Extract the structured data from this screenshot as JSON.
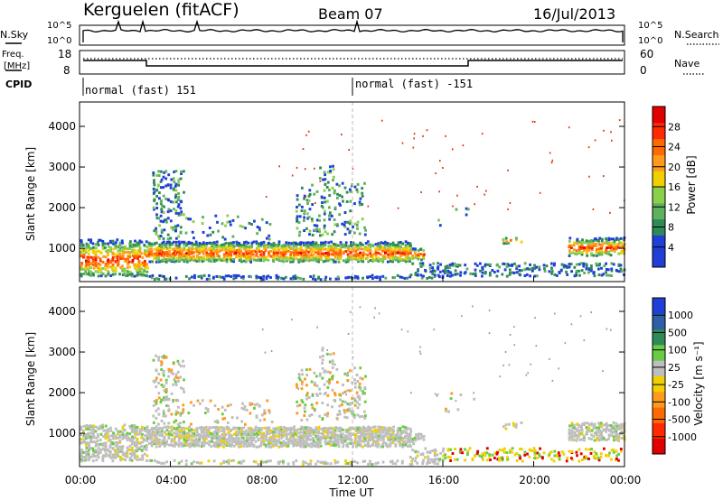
{
  "header": {
    "station": "Kerguelen (fitACF)",
    "beam": "Beam 07",
    "date": "16/Jul/2013"
  },
  "panels": {
    "nsky": {
      "label": "N.Sky",
      "left_ticks": [
        "10^5",
        "10^0"
      ]
    },
    "nsearch": {
      "label": "N.Search",
      "right_ticks": [
        "10^5",
        "10^0"
      ]
    },
    "freq": {
      "label_line1": "Freq.",
      "label_line2": "[MHz]",
      "ticks": [
        "18",
        "8"
      ]
    },
    "nave": {
      "label": "Nave",
      "ticks": [
        "60",
        "0"
      ]
    },
    "cpid": {
      "label": "CPID",
      "segments": [
        "normal (fast) 151",
        "normal (fast) -151"
      ]
    }
  },
  "colors": {
    "power": [
      "#1f3fd6",
      "#1f3fd6",
      "#2e8b57",
      "#5fb05f",
      "#8ccf4a",
      "#f0d000",
      "#ff9a1a",
      "#ff6a00",
      "#ff2a00",
      "#e00000"
    ],
    "velocity": [
      "#1f3fd6",
      "#2e5fa8",
      "#2e8b57",
      "#6acb45",
      "#bebebe",
      "#f0d000",
      "#ff9a1a",
      "#ff6a00",
      "#ff2a00",
      "#e00000"
    ],
    "power_scatter": "#e23000",
    "velocity_scatter": "#9a9a9a"
  },
  "chart_data": [
    {
      "type": "heatmap",
      "name": "power",
      "ylabel": "Slant Range [km]",
      "xlabel": "Time UT",
      "ylim": [
        180,
        4600
      ],
      "yticks": [
        1000,
        2000,
        3000,
        4000
      ],
      "xticks": [
        "00:00",
        "04:00",
        "08:00",
        "12:00",
        "16:00",
        "20:00",
        "00:00"
      ],
      "colorbar": {
        "label": "Power [dB]",
        "ticks": [
          "28",
          "24",
          "20",
          "16",
          "12",
          "8",
          "4"
        ]
      }
    },
    {
      "type": "heatmap",
      "name": "velocity",
      "ylabel": "Slant Range [km]",
      "xlabel": "Time UT",
      "ylim": [
        180,
        4600
      ],
      "yticks": [
        1000,
        2000,
        3000,
        4000
      ],
      "xticks": [
        "00:00",
        "04:00",
        "08:00",
        "12:00",
        "16:00",
        "20:00",
        "00:00"
      ],
      "colorbar": {
        "label": "Velocity [m s⁻¹]",
        "ticks": [
          "1000",
          "500",
          "100",
          "25",
          "-25",
          "-100",
          "-500",
          "-1000"
        ]
      }
    }
  ]
}
